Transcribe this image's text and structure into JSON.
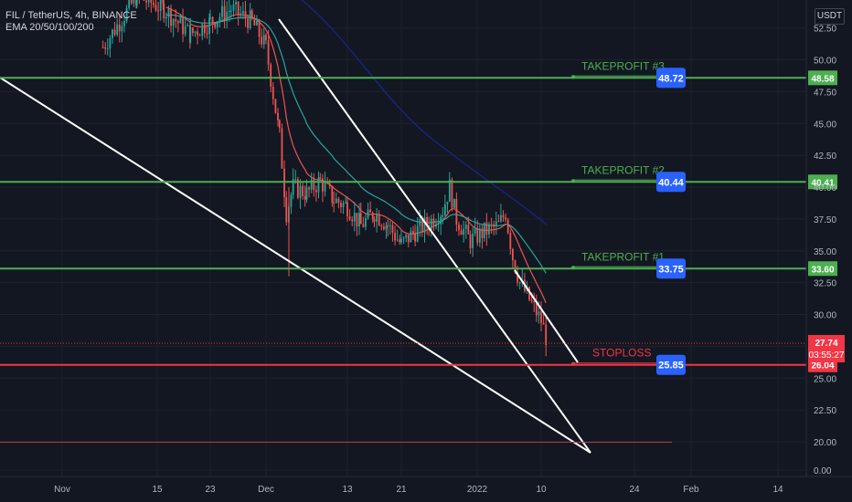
{
  "header": {
    "symbol_line": "FIL / TetherUS, 4h, BINANCE",
    "indicator_line": "EMA 20/50/100/200",
    "currency": "USDT"
  },
  "chart_data": {
    "type": "line",
    "title": "FIL / TetherUS, 4h, BINANCE",
    "indicator": "EMA 20/50/100/200",
    "y_axis": {
      "unit": "USDT",
      "ylim": [
        0,
        55
      ],
      "ticks": [
        "0.00",
        "20.00",
        "22.50",
        "25.00",
        "27.50",
        "30.00",
        "32.50",
        "35.00",
        "37.50",
        "40.00",
        "42.50",
        "45.00",
        "47.50",
        "50.00",
        "52.50"
      ]
    },
    "x_axis": {
      "ticks": [
        "Nov",
        "15",
        "23",
        "Dec",
        "13",
        "21",
        "2022",
        "10",
        "24",
        "Feb",
        "14"
      ]
    },
    "price_series": [
      {
        "date": "Nov 7",
        "price": 51
      },
      {
        "date": "Nov 12",
        "price": 55
      },
      {
        "date": "Nov 16",
        "price": 54
      },
      {
        "date": "Nov 20",
        "price": 52
      },
      {
        "date": "Nov 23",
        "price": 53
      },
      {
        "date": "Nov 26",
        "price": 54
      },
      {
        "date": "Nov 29",
        "price": 53
      },
      {
        "date": "Dec 1",
        "price": 51
      },
      {
        "date": "Dec 3",
        "price": 44
      },
      {
        "date": "Dec 4",
        "price": 38
      },
      {
        "date": "Dec 5",
        "price": 40
      },
      {
        "date": "Dec 7",
        "price": 39.5
      },
      {
        "date": "Dec 9",
        "price": 40.5
      },
      {
        "date": "Dec 11",
        "price": 39
      },
      {
        "date": "Dec 13",
        "price": 38.5
      },
      {
        "date": "Dec 15",
        "price": 37
      },
      {
        "date": "Dec 17",
        "price": 38
      },
      {
        "date": "Dec 19",
        "price": 37
      },
      {
        "date": "Dec 21",
        "price": 35.5
      },
      {
        "date": "Dec 23",
        "price": 36.5
      },
      {
        "date": "Dec 25",
        "price": 37.2
      },
      {
        "date": "Dec 27",
        "price": 38.2
      },
      {
        "date": "Dec 28",
        "price": 40
      },
      {
        "date": "Dec 29",
        "price": 37.5
      },
      {
        "date": "Dec 31",
        "price": 35.8
      },
      {
        "date": "Jan 2",
        "price": 36.5
      },
      {
        "date": "Jan 4",
        "price": 37
      },
      {
        "date": "Jan 5",
        "price": 38
      },
      {
        "date": "Jan 6",
        "price": 34.5
      },
      {
        "date": "Jan 7",
        "price": 32.5
      },
      {
        "date": "Jan 8",
        "price": 31.5
      },
      {
        "date": "Jan 9",
        "price": 30.5
      },
      {
        "date": "Jan 10",
        "price": 29.5
      },
      {
        "date": "Jan 11",
        "price": 27.74
      }
    ],
    "levels": [
      {
        "name": "TAKEPROFIT #3",
        "target": "48.72",
        "axis_value": "48.58",
        "kind": "takeprofit"
      },
      {
        "name": "TAKEPROFIT #2",
        "target": "40.44",
        "axis_value": "40.41",
        "kind": "takeprofit"
      },
      {
        "name": "TAKEPROFIT #1",
        "target": "33.75",
        "axis_value": "33.60",
        "kind": "takeprofit"
      },
      {
        "name": "STOPLOSS",
        "target": "25.85",
        "axis_value": "26.04",
        "kind": "stoploss"
      }
    ],
    "last_price": {
      "value": "27.74",
      "countdown": "03:55:27"
    },
    "colors": {
      "background": "#131722",
      "takeprofit": "#4caf50",
      "stoploss": "#f23645",
      "label_box": "#2962ff",
      "trendline": "#ffffff",
      "ema20": "#ef5350",
      "ema50": "#26a69a",
      "ema200": "#1a237e",
      "candle_up": "#26a69a",
      "candle_down": "#ef5350"
    },
    "grid": true,
    "legend": "top-left"
  }
}
